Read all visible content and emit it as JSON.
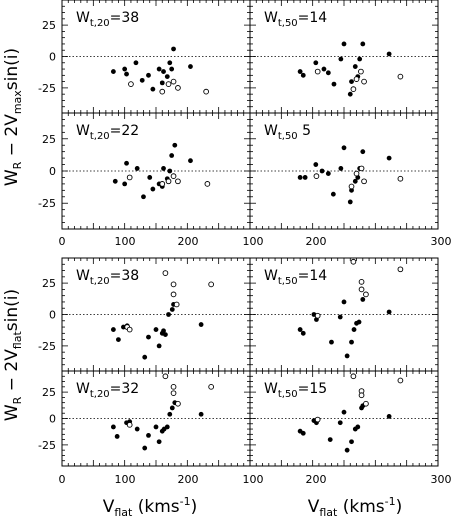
{
  "chart_data": [
    {
      "type": "scatter",
      "x_ticks": [
        "0",
        "100",
        "200",
        "300"
      ],
      "y_ticks": [
        "25",
        "0",
        "-25"
      ],
      "xlim": [
        0,
        300
      ],
      "ylim": [
        -45,
        45
      ],
      "xlabel": "",
      "ylabel": "W_R − 2V_max sin(i)",
      "panels": [
        {
          "label": {
            "prefix": "W",
            "sub": "t,20",
            "value": "=38"
          },
          "filled": [
            [
              82,
              -12
            ],
            [
              100,
              -10
            ],
            [
              103,
              -14
            ],
            [
              118,
              -5
            ],
            [
              128,
              -19
            ],
            [
              138,
              -15
            ],
            [
              145,
              -26
            ],
            [
              155,
              -10
            ],
            [
              160,
              -21
            ],
            [
              162,
              -12
            ],
            [
              168,
              -16
            ],
            [
              172,
              -5
            ],
            [
              175,
              -10
            ],
            [
              178,
              6
            ],
            [
              205,
              -8
            ]
          ],
          "open": [
            [
              110,
              -22
            ],
            [
              160,
              -28
            ],
            [
              170,
              -22
            ],
            [
              178,
              -20
            ],
            [
              185,
              -25
            ],
            [
              230,
              -28
            ]
          ]
        },
        {
          "label": {
            "prefix": "W",
            "sub": "t,50",
            "value": "=14"
          },
          "filled": [
            [
              80,
              -12
            ],
            [
              85,
              -15
            ],
            [
              105,
              -5
            ],
            [
              118,
              -10
            ],
            [
              125,
              -13
            ],
            [
              134,
              -22
            ],
            [
              145,
              -2
            ],
            [
              150,
              10
            ],
            [
              160,
              -30
            ],
            [
              162,
              -20
            ],
            [
              168,
              -8
            ],
            [
              172,
              -16
            ],
            [
              175,
              -2
            ],
            [
              180,
              10
            ],
            [
              222,
              2
            ]
          ],
          "open": [
            [
              108,
              -12
            ],
            [
              165,
              -26
            ],
            [
              170,
              -18
            ],
            [
              177,
              -12
            ],
            [
              182,
              -20
            ],
            [
              240,
              -16
            ]
          ]
        },
        {
          "label": {
            "prefix": "W",
            "sub": "t,20",
            "value": "=22"
          },
          "filled": [
            [
              85,
              -8
            ],
            [
              100,
              -10
            ],
            [
              103,
              6
            ],
            [
              120,
              2
            ],
            [
              130,
              -20
            ],
            [
              140,
              -5
            ],
            [
              145,
              -14
            ],
            [
              155,
              -10
            ],
            [
              160,
              -12
            ],
            [
              162,
              2
            ],
            [
              168,
              -6
            ],
            [
              172,
              0
            ],
            [
              175,
              12
            ],
            [
              180,
              20
            ],
            [
              205,
              8
            ]
          ],
          "open": [
            [
              108,
              -5
            ],
            [
              160,
              -10
            ],
            [
              170,
              -8
            ],
            [
              178,
              -4
            ],
            [
              185,
              -8
            ],
            [
              232,
              -10
            ]
          ]
        },
        {
          "label": {
            "prefix": "W",
            "sub": "t,50",
            "value": " 5"
          },
          "filled": [
            [
              80,
              -5
            ],
            [
              88,
              -5
            ],
            [
              105,
              5
            ],
            [
              115,
              0
            ],
            [
              125,
              -2
            ],
            [
              133,
              -18
            ],
            [
              145,
              2
            ],
            [
              150,
              18
            ],
            [
              160,
              -24
            ],
            [
              162,
              -15
            ],
            [
              168,
              -8
            ],
            [
              172,
              -5
            ],
            [
              175,
              2
            ],
            [
              180,
              15
            ],
            [
              222,
              10
            ]
          ],
          "open": [
            [
              106,
              -4
            ],
            [
              162,
              -12
            ],
            [
              170,
              -2
            ],
            [
              178,
              2
            ],
            [
              182,
              -8
            ],
            [
              240,
              -6
            ]
          ]
        }
      ]
    },
    {
      "type": "scatter",
      "x_ticks": [
        "0",
        "100",
        "200",
        "300"
      ],
      "y_ticks": [
        "25",
        "0",
        "-25"
      ],
      "xlim": [
        0,
        300
      ],
      "ylim": [
        -45,
        45
      ],
      "xlabel": "V_flat (kms^-1)",
      "ylabel": "W_R − 2V_flat sin(i)",
      "panels": [
        {
          "label": {
            "prefix": "W",
            "sub": "t,20",
            "value": "=38"
          },
          "filled": [
            [
              82,
              -12
            ],
            [
              90,
              -20
            ],
            [
              98,
              -10
            ],
            [
              104,
              -9
            ],
            [
              108,
              -12
            ],
            [
              132,
              -34
            ],
            [
              138,
              -18
            ],
            [
              150,
              -12
            ],
            [
              155,
              -25
            ],
            [
              160,
              -15
            ],
            [
              162,
              -13
            ],
            [
              165,
              -16
            ],
            [
              170,
              0
            ],
            [
              176,
              4
            ],
            [
              178,
              8
            ],
            [
              222,
              -8
            ]
          ],
          "open": [
            [
              104,
              -10
            ],
            [
              108,
              -12
            ],
            [
              165,
              33
            ],
            [
              178,
              24
            ],
            [
              178,
              16
            ],
            [
              183,
              8
            ],
            [
              238,
              24
            ]
          ]
        },
        {
          "label": {
            "prefix": "W",
            "sub": "t,50",
            "value": "=14"
          },
          "filled": [
            [
              80,
              -12
            ],
            [
              85,
              -15
            ],
            [
              102,
              0
            ],
            [
              106,
              -4
            ],
            [
              130,
              -22
            ],
            [
              144,
              -2
            ],
            [
              150,
              10
            ],
            [
              155,
              -33
            ],
            [
              162,
              -22
            ],
            [
              166,
              -12
            ],
            [
              170,
              -7
            ],
            [
              174,
              -6
            ],
            [
              180,
              12
            ],
            [
              222,
              2
            ]
          ],
          "open": [
            [
              108,
              -1
            ],
            [
              165,
              42
            ],
            [
              178,
              26
            ],
            [
              178,
              20
            ],
            [
              185,
              16
            ],
            [
              240,
              36
            ]
          ]
        },
        {
          "label": {
            "prefix": "W",
            "sub": "t,20",
            "value": "=32"
          },
          "filled": [
            [
              82,
              -8
            ],
            [
              88,
              -17
            ],
            [
              103,
              -4
            ],
            [
              108,
              -3
            ],
            [
              120,
              -10
            ],
            [
              132,
              -28
            ],
            [
              138,
              -16
            ],
            [
              150,
              -8
            ],
            [
              155,
              -22
            ],
            [
              160,
              -12
            ],
            [
              163,
              -10
            ],
            [
              168,
              -8
            ],
            [
              172,
              4
            ],
            [
              176,
              10
            ],
            [
              180,
              15
            ],
            [
              222,
              4
            ]
          ],
          "open": [
            [
              108,
              -6
            ],
            [
              165,
              40
            ],
            [
              178,
              30
            ],
            [
              178,
              24
            ],
            [
              185,
              14
            ],
            [
              238,
              30
            ]
          ]
        },
        {
          "label": {
            "prefix": "W",
            "sub": "t,50",
            "value": "=15"
          },
          "filled": [
            [
              80,
              -12
            ],
            [
              85,
              -14
            ],
            [
              102,
              -2
            ],
            [
              106,
              -4
            ],
            [
              128,
              -20
            ],
            [
              144,
              -4
            ],
            [
              150,
              6
            ],
            [
              155,
              -30
            ],
            [
              162,
              -22
            ],
            [
              168,
              -10
            ],
            [
              172,
              -8
            ],
            [
              178,
              10
            ],
            [
              180,
              12
            ],
            [
              222,
              2
            ]
          ],
          "open": [
            [
              108,
              -1
            ],
            [
              165,
              40
            ],
            [
              178,
              26
            ],
            [
              178,
              22
            ],
            [
              185,
              14
            ],
            [
              240,
              36
            ]
          ]
        }
      ]
    }
  ]
}
